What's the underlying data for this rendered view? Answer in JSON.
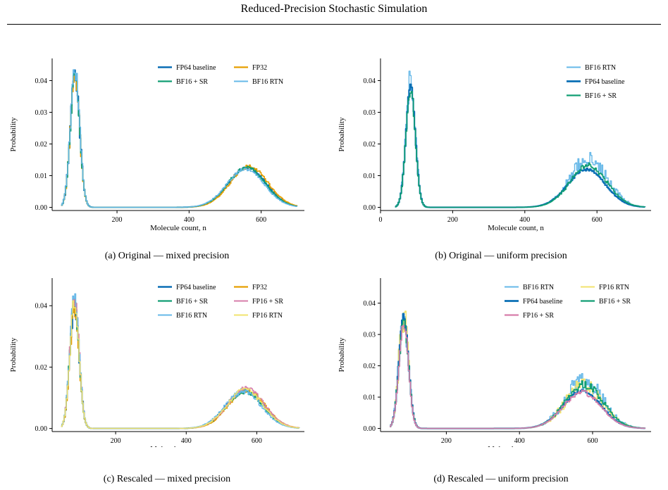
{
  "page": {
    "title": "Reduced-Precision Stochastic Simulation"
  },
  "colors": {
    "fp64": "#0a6fb5",
    "fp32": "#e69f00",
    "bf16sr": "#109e73",
    "bf16rtn": "#66b8e8",
    "fp16sr": "#d77daa",
    "fp16rtn": "#f2e36e"
  },
  "chart_data": [
    {
      "type": "line",
      "caption": "(a) Original — mixed precision",
      "xlabel": "Molecule count, n",
      "ylabel": "Probability",
      "xlim": [
        20,
        720
      ],
      "ylim": [
        -0.001,
        0.047
      ],
      "xticks": [
        200,
        400,
        600
      ],
      "yticks": [
        0.0,
        0.01,
        0.02,
        0.03,
        0.04
      ],
      "ytick_labels": [
        "0.00",
        "0.01",
        "0.02",
        "0.03",
        "0.04"
      ],
      "x_range": [
        45,
        700
      ],
      "legend": {
        "placement": "top-right",
        "columns": 2
      },
      "series": [
        {
          "name": "FP64 baseline",
          "color_key": "fp64",
          "width": 2.0,
          "peak1": 0.041,
          "peak2": 0.0125,
          "noise1": 0.0025,
          "noise2": 0.0006,
          "mu2": 560,
          "seed": 11
        },
        {
          "name": "FP32",
          "color_key": "fp32",
          "width": 1.6,
          "peak1": 0.04,
          "peak2": 0.013,
          "noise1": 0.0025,
          "noise2": 0.0007,
          "mu2": 565,
          "seed": 12
        },
        {
          "name": "BF16 + SR",
          "color_key": "bf16sr",
          "width": 1.6,
          "peak1": 0.042,
          "peak2": 0.0125,
          "noise1": 0.0025,
          "noise2": 0.0006,
          "mu2": 558,
          "seed": 13
        },
        {
          "name": "BF16 RTN",
          "color_key": "bf16rtn",
          "width": 1.4,
          "peak1": 0.043,
          "peak2": 0.012,
          "noise1": 0.0028,
          "noise2": 0.0006,
          "mu2": 555,
          "seed": 14
        }
      ]
    },
    {
      "type": "line",
      "caption": "(b) Original — uniform precision",
      "xlabel": "Molecule count, n",
      "ylabel": "Probability",
      "xlim": [
        0,
        750
      ],
      "ylim": [
        -0.001,
        0.047
      ],
      "xticks": [
        0,
        200,
        400,
        600
      ],
      "yticks": [
        0.0,
        0.01,
        0.02,
        0.03,
        0.04
      ],
      "ytick_labels": [
        "0.00",
        "0.01",
        "0.02",
        "0.03",
        "0.04"
      ],
      "x_range": [
        40,
        735
      ],
      "legend": {
        "placement": "top-right",
        "columns": 1
      },
      "series": [
        {
          "name": "BF16 RTN",
          "color_key": "bf16rtn",
          "width": 1.4,
          "peak1": 0.04,
          "peak2": 0.015,
          "noise1": 0.0045,
          "noise2": 0.003,
          "mu2": 575,
          "seed": 21
        },
        {
          "name": "FP64 baseline",
          "color_key": "fp64",
          "width": 2.2,
          "peak1": 0.038,
          "peak2": 0.012,
          "noise1": 0.001,
          "noise2": 0.0005,
          "mu2": 570,
          "seed": 22
        },
        {
          "name": "BF16 + SR",
          "color_key": "bf16sr",
          "width": 1.6,
          "peak1": 0.037,
          "peak2": 0.013,
          "noise1": 0.0015,
          "noise2": 0.001,
          "mu2": 575,
          "seed": 23
        }
      ]
    },
    {
      "type": "line",
      "caption": "(c) Rescaled — mixed precision",
      "xlabel": "Molecule count, n",
      "ylabel": "Probability",
      "xlim": [
        20,
        735
      ],
      "ylim": [
        -0.001,
        0.049
      ],
      "xticks": [
        200,
        400,
        600
      ],
      "yticks": [
        0.0,
        0.02,
        0.04
      ],
      "ytick_labels": [
        "0.00",
        "0.02",
        "0.04"
      ],
      "x_range": [
        45,
        720
      ],
      "legend": {
        "placement": "top-right",
        "columns": 2
      },
      "series": [
        {
          "name": "FP64 baseline",
          "color_key": "fp64",
          "width": 2.0,
          "peak1": 0.04,
          "peak2": 0.0125,
          "noise1": 0.0025,
          "noise2": 0.0007,
          "mu2": 565,
          "seed": 31
        },
        {
          "name": "FP32",
          "color_key": "fp32",
          "width": 1.6,
          "peak1": 0.039,
          "peak2": 0.0125,
          "noise1": 0.0025,
          "noise2": 0.0007,
          "mu2": 570,
          "seed": 32
        },
        {
          "name": "BF16 + SR",
          "color_key": "bf16sr",
          "width": 1.6,
          "peak1": 0.041,
          "peak2": 0.012,
          "noise1": 0.0025,
          "noise2": 0.0007,
          "mu2": 565,
          "seed": 33
        },
        {
          "name": "FP16 + SR",
          "color_key": "fp16sr",
          "width": 1.4,
          "peak1": 0.042,
          "peak2": 0.013,
          "noise1": 0.0025,
          "noise2": 0.0008,
          "mu2": 568,
          "seed": 34
        },
        {
          "name": "BF16 RTN",
          "color_key": "bf16rtn",
          "width": 1.4,
          "peak1": 0.043,
          "peak2": 0.012,
          "noise1": 0.003,
          "noise2": 0.0008,
          "mu2": 560,
          "seed": 35
        },
        {
          "name": "FP16 RTN",
          "color_key": "fp16rtn",
          "width": 1.4,
          "peak1": 0.041,
          "peak2": 0.0125,
          "noise1": 0.0028,
          "noise2": 0.0008,
          "mu2": 565,
          "seed": 36
        }
      ]
    },
    {
      "type": "line",
      "caption": "(d) Rescaled — uniform precision",
      "xlabel": "Molecule count, n",
      "ylabel": "Probability",
      "xlim": [
        20,
        760
      ],
      "ylim": [
        -0.001,
        0.048
      ],
      "xticks": [
        200,
        400,
        600
      ],
      "yticks": [
        0.0,
        0.01,
        0.02,
        0.03,
        0.04
      ],
      "ytick_labels": [
        "0.00",
        "0.01",
        "0.02",
        "0.03",
        "0.04"
      ],
      "x_range": [
        45,
        745
      ],
      "legend": {
        "placement": "top-right",
        "columns": 2
      },
      "series": [
        {
          "name": "BF16 RTN",
          "color_key": "bf16rtn",
          "width": 1.4,
          "peak1": 0.037,
          "peak2": 0.015,
          "noise1": 0.006,
          "noise2": 0.0035,
          "mu2": 575,
          "seed": 41
        },
        {
          "name": "FP16 RTN",
          "color_key": "fp16rtn",
          "width": 1.4,
          "peak1": 0.036,
          "peak2": 0.0135,
          "noise1": 0.006,
          "noise2": 0.003,
          "mu2": 575,
          "seed": 42
        },
        {
          "name": "FP64 baseline",
          "color_key": "fp64",
          "width": 2.2,
          "peak1": 0.036,
          "peak2": 0.012,
          "noise1": 0.001,
          "noise2": 0.0005,
          "mu2": 570,
          "seed": 43
        },
        {
          "name": "BF16 + SR",
          "color_key": "bf16sr",
          "width": 1.6,
          "peak1": 0.034,
          "peak2": 0.014,
          "noise1": 0.002,
          "noise2": 0.0015,
          "mu2": 575,
          "seed": 44
        },
        {
          "name": "FP16 + SR",
          "color_key": "fp16sr",
          "width": 1.6,
          "peak1": 0.033,
          "peak2": 0.0115,
          "noise1": 0.002,
          "noise2": 0.0008,
          "mu2": 570,
          "seed": 45
        }
      ]
    }
  ]
}
